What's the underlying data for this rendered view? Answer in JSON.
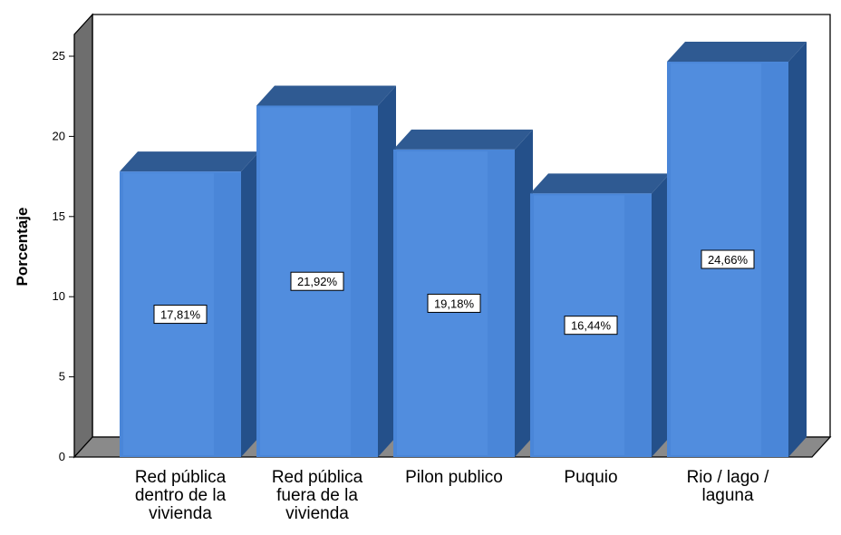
{
  "chart_data": {
    "type": "bar",
    "ylabel": "Porcentaje",
    "xlabel": "",
    "ylim": [
      0,
      25
    ],
    "yticks": [
      0,
      5,
      10,
      15,
      20,
      25
    ],
    "categories": [
      [
        "Red pública",
        "dentro de la",
        "vivienda"
      ],
      [
        "Red pública",
        "fuera de la",
        "vivienda"
      ],
      [
        "Pilon publico"
      ],
      [
        "Puquio"
      ],
      [
        "Rio / lago /",
        "laguna"
      ]
    ],
    "values": [
      17.81,
      21.92,
      19.18,
      16.44,
      24.66
    ],
    "data_labels": [
      "17,81%",
      "21,92%",
      "19,18%",
      "16,44%",
      "24,66%"
    ],
    "style": "3d-bar",
    "grid": false,
    "colors": {
      "bar_front": "#4a86d8",
      "bar_front_highlight": "#5b97e6",
      "bar_top": "#2f5a92",
      "bar_side": "#24508a",
      "back_wall": "#ffffff",
      "side_wall": "#6e6e6e",
      "floor": "#8a8a8a",
      "outline": "#000000"
    }
  }
}
